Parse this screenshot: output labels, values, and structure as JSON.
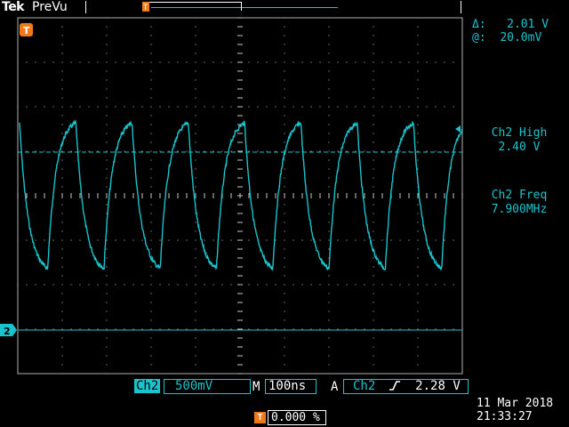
{
  "header": {
    "brand": "Tek",
    "mode": "PreVu"
  },
  "measurements": {
    "delta_label": "Δ:",
    "delta_value": "2.01 V",
    "at_label": "@:",
    "at_value": "20.0mV",
    "ch2_high_label": "Ch2 High",
    "ch2_high_value": "2.40 V",
    "ch2_freq_label": "Ch2 Freq",
    "ch2_freq_value": "7.900MHz"
  },
  "markers": {
    "trigger_marker": "T",
    "channel_marker": "2"
  },
  "status": {
    "channel": "Ch2",
    "vertical_scale": "500mV",
    "timebase_label": "M",
    "timebase": "100ns",
    "trigger_mode": "A",
    "trigger_source": "Ch2",
    "trigger_slope_icon": "rising-edge-icon",
    "trigger_level": "2.28 V",
    "position_icon": "T",
    "position": "0.000 %",
    "date": "11 Mar  2018",
    "time": "21:33:27"
  },
  "colors": {
    "trace": "#19c4cc",
    "trigger": "#f07a1a",
    "grid": "#ffffff"
  },
  "scope": {
    "x_divisions": 10,
    "y_divisions": 8
  }
}
